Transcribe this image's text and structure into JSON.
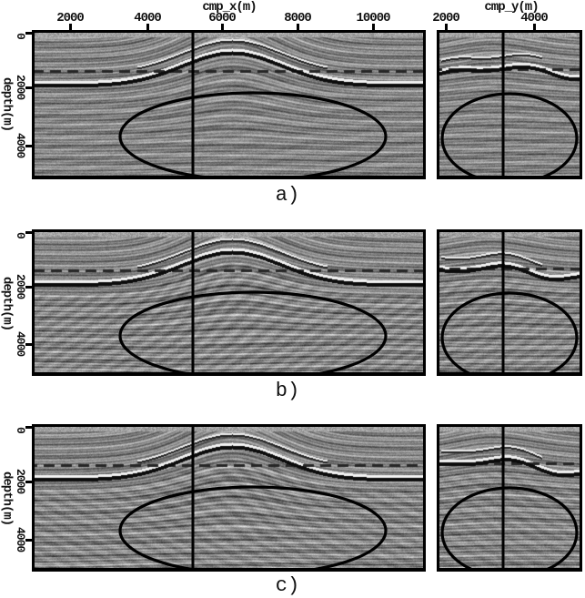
{
  "figure": {
    "kind": "seismic depth sections, 3 panels each with inline and crossline view",
    "axes": {
      "cmp_x": {
        "title": "cmp_x(m)",
        "ticks": [
          "2000",
          "4000",
          "6000",
          "8000",
          "10000"
        ]
      },
      "cmp_y": {
        "title": "cmp_y(m)",
        "ticks": [
          "2000",
          "4000"
        ]
      },
      "depth": {
        "title": "depth(m)",
        "ticks": [
          "0",
          "2000",
          "4000"
        ]
      }
    },
    "panels": [
      {
        "label": "a)"
      },
      {
        "label": "b)"
      },
      {
        "label": "c)"
      }
    ],
    "annotations": {
      "ellipse_note": "black ellipse highlighting deep target zone in each section",
      "line_note": "black vertical line marking intersection of inline and crossline",
      "stroke_color": "#000000"
    }
  }
}
